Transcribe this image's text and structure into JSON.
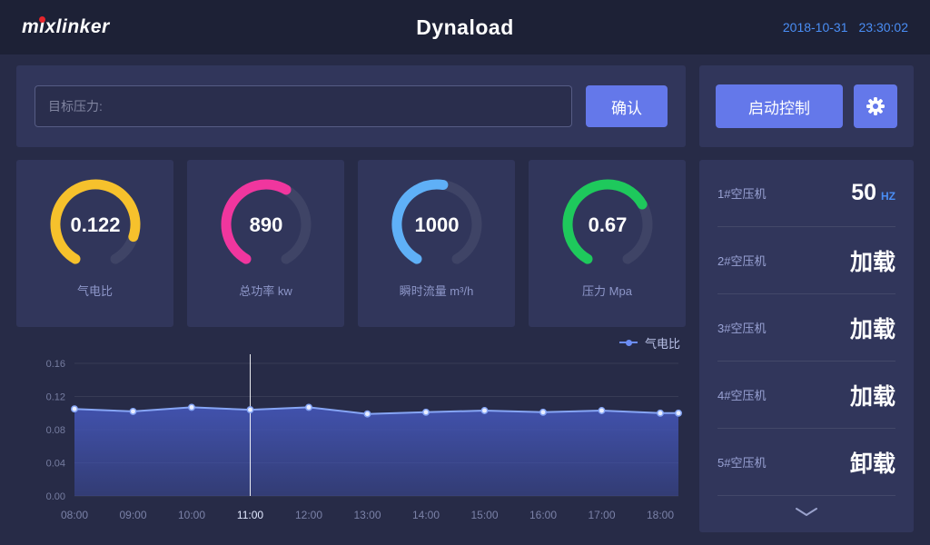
{
  "header": {
    "logo_text": "mixlinker",
    "title": "Dynaload",
    "date": "2018-10-31",
    "time": "23:30:02"
  },
  "control_bar": {
    "input_placeholder": "目标压力:",
    "confirm_label": "确认"
  },
  "side_controls": {
    "start_label": "启动控制",
    "gear_icon": "gear-icon"
  },
  "colors": {
    "accent_button": "#6478ea",
    "datetime_blue": "#4a8ef5",
    "gauge_track": "#3f4466"
  },
  "gauges": [
    {
      "value": "0.122",
      "label": "气电比",
      "color": "#f6c12c",
      "percent": 86
    },
    {
      "value": "890",
      "label": "总功率 kw",
      "color": "#f0369e",
      "percent": 60
    },
    {
      "value": "1000",
      "label": "瞬时流量 m³/h",
      "color": "#5fb0f7",
      "percent": 53
    },
    {
      "value": "0.67",
      "label": "压力 Mpa",
      "color": "#1ec95c",
      "percent": 70
    }
  ],
  "chart_data": {
    "type": "area",
    "title": "",
    "legend": [
      "气电比"
    ],
    "x": [
      "08:00",
      "09:00",
      "10:00",
      "11:00",
      "12:00",
      "13:00",
      "14:00",
      "15:00",
      "16:00",
      "17:00",
      "18:00"
    ],
    "values": [
      0.105,
      0.102,
      0.107,
      0.104,
      0.107,
      0.099,
      0.101,
      0.103,
      0.101,
      0.103,
      0.1
    ],
    "ylim": [
      0,
      0.16
    ],
    "yticks": [
      "0.16",
      "0.12",
      "0.08",
      "0.04",
      "0.00"
    ],
    "highlight_x": "11:00",
    "line_color": "#86a5f5",
    "fill_color": "#4456b8",
    "grid": true,
    "legend_position": "top-right"
  },
  "compressors": {
    "items": [
      {
        "label": "1#空压机",
        "value": "50",
        "unit": "HZ"
      },
      {
        "label": "2#空压机",
        "value": "加载",
        "unit": ""
      },
      {
        "label": "3#空压机",
        "value": "加载",
        "unit": ""
      },
      {
        "label": "4#空压机",
        "value": "加载",
        "unit": ""
      },
      {
        "label": "5#空压机",
        "value": "卸载",
        "unit": ""
      }
    ]
  }
}
